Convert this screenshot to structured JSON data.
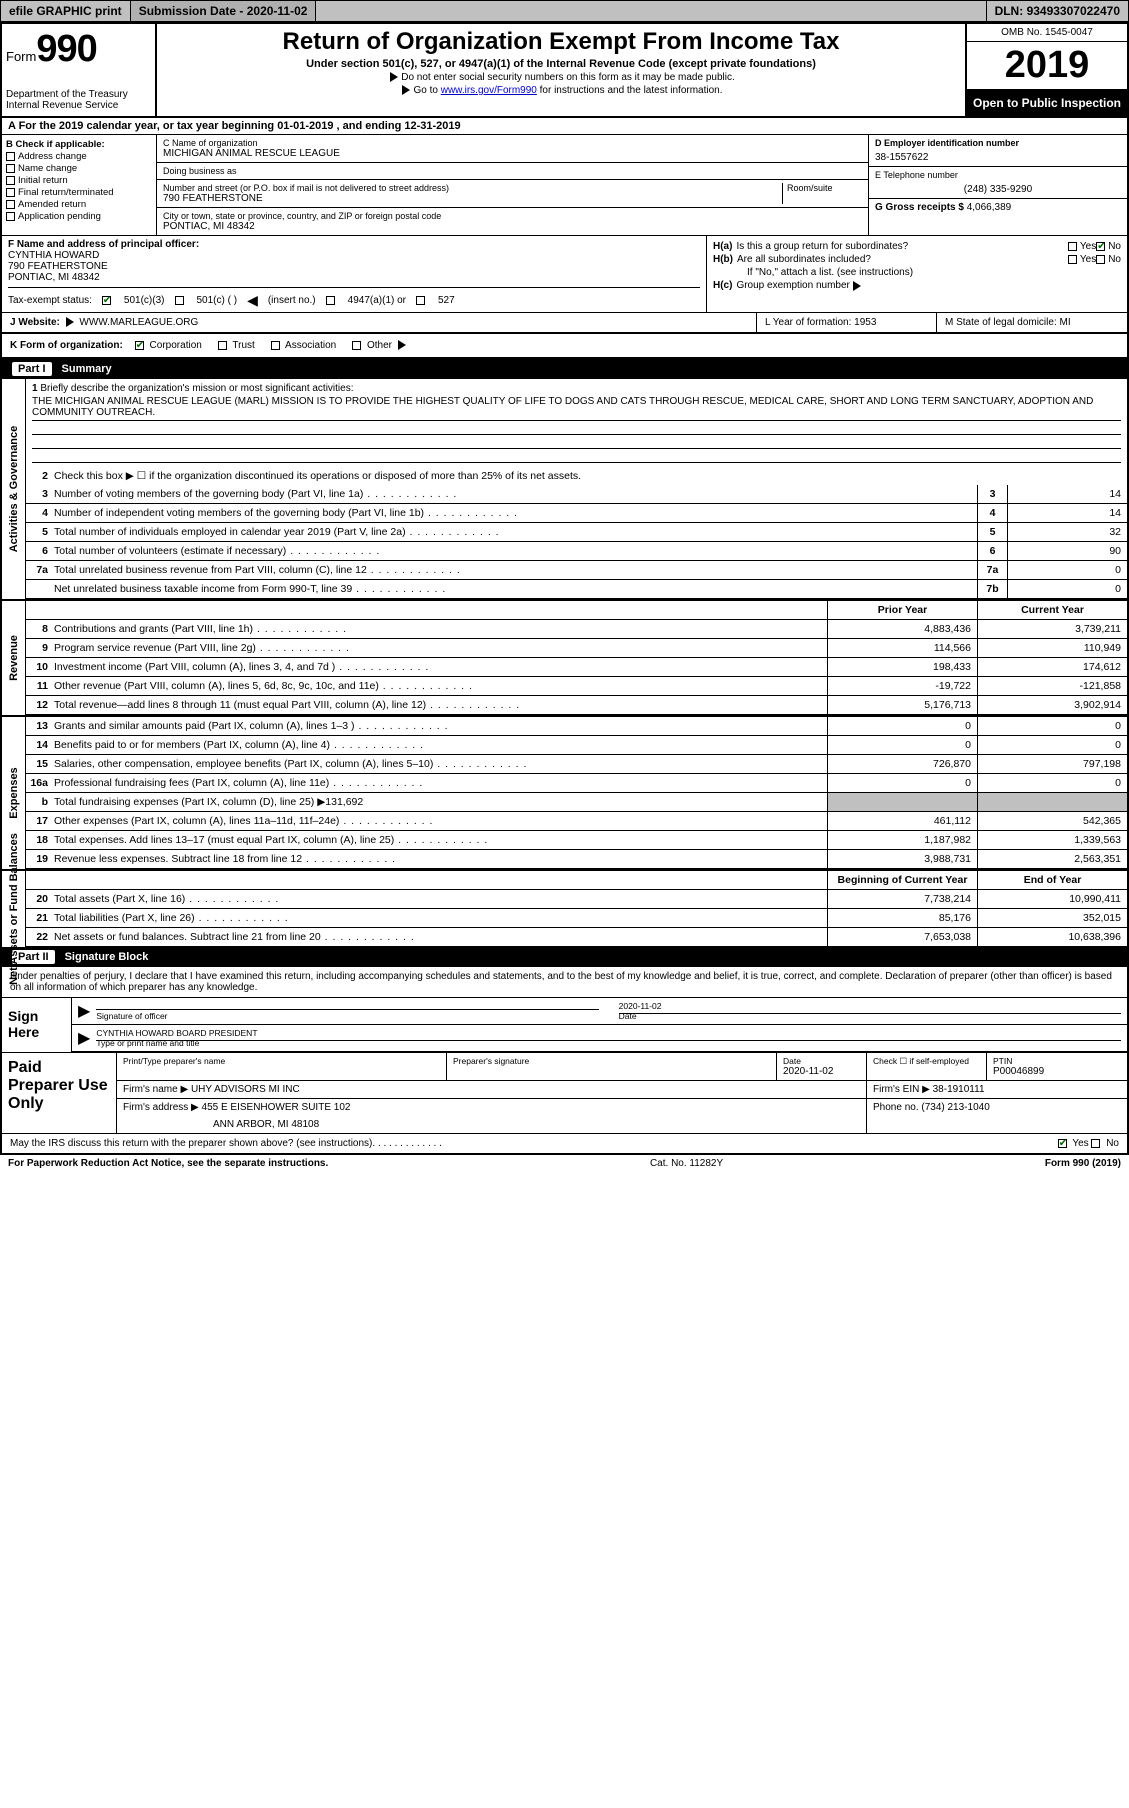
{
  "topbar": {
    "efile": "efile GRAPHIC print",
    "subdate_label": "Submission Date - ",
    "subdate": "2020-11-02",
    "dln_label": "DLN: ",
    "dln": "93493307022470"
  },
  "header": {
    "form_word": "Form",
    "form_num": "990",
    "dept1": "Department of the Treasury",
    "dept2": "Internal Revenue Service",
    "title": "Return of Organization Exempt From Income Tax",
    "sub": "Under section 501(c), 527, or 4947(a)(1) of the Internal Revenue Code (except private foundations)",
    "note1": "Do not enter social security numbers on this form as it may be made public.",
    "note2_a": "Go to ",
    "note2_link": "www.irs.gov/Form990",
    "note2_b": " for instructions and the latest information.",
    "omb": "OMB No. 1545-0047",
    "year": "2019",
    "open": "Open to Public Inspection"
  },
  "rowA": "A For the 2019 calendar year, or tax year beginning 01-01-2019   , and ending 12-31-2019",
  "colB": {
    "hdr": "B Check if applicable:",
    "items": [
      "Address change",
      "Name change",
      "Initial return",
      "Final return/terminated",
      "Amended return",
      "Application pending"
    ]
  },
  "colC": {
    "name_lbl": "C Name of organization",
    "name": "MICHIGAN ANIMAL RESCUE LEAGUE",
    "dba_lbl": "Doing business as",
    "dba": "",
    "addr_lbl": "Number and street (or P.O. box if mail is not delivered to street address)",
    "room_lbl": "Room/suite",
    "addr": "790 FEATHERSTONE",
    "city_lbl": "City or town, state or province, country, and ZIP or foreign postal code",
    "city": "PONTIAC, MI  48342"
  },
  "colD": {
    "lbl": "D Employer identification number",
    "val": "38-1557622"
  },
  "colE": {
    "lbl": "E Telephone number",
    "val": "(248) 335-9290"
  },
  "colG": {
    "lbl": "G Gross receipts $ ",
    "val": "4,066,389"
  },
  "colF": {
    "lbl": "F  Name and address of principal officer:",
    "name": "CYNTHIA HOWARD",
    "addr1": "790 FEATHERSTONE",
    "addr2": "PONTIAC, MI  48342"
  },
  "colH": {
    "a_lbl": "H(a)",
    "a_txt": "Is this a group return for subordinates?",
    "b_lbl": "H(b)",
    "b_txt": "Are all subordinates included?",
    "b_note": "If \"No,\" attach a list. (see instructions)",
    "c_lbl": "H(c)",
    "c_txt": "Group exemption number",
    "yes": "Yes",
    "no": "No"
  },
  "rowI": {
    "lbl": "Tax-exempt status:",
    "o1": "501(c)(3)",
    "o2": "501(c) (  )",
    "o2b": "(insert no.)",
    "o3": "4947(a)(1) or",
    "o4": "527"
  },
  "rowJ": {
    "lbl": "J   Website:",
    "val": "WWW.MARLEAGUE.ORG"
  },
  "rowL": {
    "lbl": "L Year of formation: ",
    "val": "1953"
  },
  "rowM": {
    "lbl": "M State of legal domicile: ",
    "val": "MI"
  },
  "rowK": {
    "lbl": "K Form of organization:",
    "opts": [
      "Corporation",
      "Trust",
      "Association",
      "Other"
    ]
  },
  "part1": {
    "num": "Part I",
    "title": "Summary",
    "side1": "Activities & Governance",
    "side2": "Revenue",
    "side3": "Expenses",
    "side4": "Net Assets or Fund Balances",
    "l1_lbl": "Briefly describe the organization's mission or most significant activities:",
    "l1_txt": "THE MICHIGAN ANIMAL RESCUE LEAGUE (MARL) MISSION IS TO PROVIDE THE HIGHEST QUALITY OF LIFE TO DOGS AND CATS THROUGH RESCUE, MEDICAL CARE, SHORT AND LONG TERM SANCTUARY, ADOPTION AND COMMUNITY OUTREACH.",
    "l2": "Check this box ▶ ☐  if the organization discontinued its operations or disposed of more than 25% of its net assets.",
    "lines_single": [
      {
        "n": "3",
        "d": "Number of voting members of the governing body (Part VI, line 1a)",
        "b": "3",
        "v": "14"
      },
      {
        "n": "4",
        "d": "Number of independent voting members of the governing body (Part VI, line 1b)",
        "b": "4",
        "v": "14"
      },
      {
        "n": "5",
        "d": "Total number of individuals employed in calendar year 2019 (Part V, line 2a)",
        "b": "5",
        "v": "32"
      },
      {
        "n": "6",
        "d": "Total number of volunteers (estimate if necessary)",
        "b": "6",
        "v": "90"
      },
      {
        "n": "7a",
        "d": "Total unrelated business revenue from Part VIII, column (C), line 12",
        "b": "7a",
        "v": "0"
      },
      {
        "n": "",
        "d": "Net unrelated business taxable income from Form 990-T, line 39",
        "b": "7b",
        "v": "0"
      }
    ],
    "col_hdr_prior": "Prior Year",
    "col_hdr_curr": "Current Year",
    "rev": [
      {
        "n": "8",
        "d": "Contributions and grants (Part VIII, line 1h)",
        "p": "4,883,436",
        "c": "3,739,211"
      },
      {
        "n": "9",
        "d": "Program service revenue (Part VIII, line 2g)",
        "p": "114,566",
        "c": "110,949"
      },
      {
        "n": "10",
        "d": "Investment income (Part VIII, column (A), lines 3, 4, and 7d )",
        "p": "198,433",
        "c": "174,612"
      },
      {
        "n": "11",
        "d": "Other revenue (Part VIII, column (A), lines 5, 6d, 8c, 9c, 10c, and 11e)",
        "p": "-19,722",
        "c": "-121,858"
      },
      {
        "n": "12",
        "d": "Total revenue—add lines 8 through 11 (must equal Part VIII, column (A), line 12)",
        "p": "5,176,713",
        "c": "3,902,914"
      }
    ],
    "exp": [
      {
        "n": "13",
        "d": "Grants and similar amounts paid (Part IX, column (A), lines 1–3 )",
        "p": "0",
        "c": "0"
      },
      {
        "n": "14",
        "d": "Benefits paid to or for members (Part IX, column (A), line 4)",
        "p": "0",
        "c": "0"
      },
      {
        "n": "15",
        "d": "Salaries, other compensation, employee benefits (Part IX, column (A), lines 5–10)",
        "p": "726,870",
        "c": "797,198"
      },
      {
        "n": "16a",
        "d": "Professional fundraising fees (Part IX, column (A), line 11e)",
        "p": "0",
        "c": "0"
      },
      {
        "n": "b",
        "d": "Total fundraising expenses (Part IX, column (D), line 25) ▶131,692",
        "p": "",
        "c": "",
        "shade": true
      },
      {
        "n": "17",
        "d": "Other expenses (Part IX, column (A), lines 11a–11d, 11f–24e)",
        "p": "461,112",
        "c": "542,365"
      },
      {
        "n": "18",
        "d": "Total expenses. Add lines 13–17 (must equal Part IX, column (A), line 25)",
        "p": "1,187,982",
        "c": "1,339,563"
      },
      {
        "n": "19",
        "d": "Revenue less expenses. Subtract line 18 from line 12",
        "p": "3,988,731",
        "c": "2,563,351"
      }
    ],
    "na_hdr_b": "Beginning of Current Year",
    "na_hdr_e": "End of Year",
    "na": [
      {
        "n": "20",
        "d": "Total assets (Part X, line 16)",
        "p": "7,738,214",
        "c": "10,990,411"
      },
      {
        "n": "21",
        "d": "Total liabilities (Part X, line 26)",
        "p": "85,176",
        "c": "352,015"
      },
      {
        "n": "22",
        "d": "Net assets or fund balances. Subtract line 21 from line 20",
        "p": "7,653,038",
        "c": "10,638,396"
      }
    ]
  },
  "part2": {
    "num": "Part II",
    "title": "Signature Block",
    "intro": "Under penalties of perjury, I declare that I have examined this return, including accompanying schedules and statements, and to the best of my knowledge and belief, it is true, correct, and complete. Declaration of preparer (other than officer) is based on all information of which preparer has any knowledge.",
    "sign_here": "Sign Here",
    "sig_officer_lbl": "Signature of officer",
    "date_lbl": "Date",
    "sig_date": "2020-11-02",
    "name_title": "CYNTHIA HOWARD  BOARD PRESIDENT",
    "name_title_lbl": "Type or print name and title",
    "paid": "Paid Preparer Use Only",
    "p_name_lbl": "Print/Type preparer's name",
    "p_sig_lbl": "Preparer's signature",
    "p_date_lbl": "Date",
    "p_date": "2020-11-02",
    "p_check_lbl": "Check ☐ if self-employed",
    "ptin_lbl": "PTIN",
    "ptin": "P00046899",
    "firm_name_lbl": "Firm's name   ▶",
    "firm_name": "UHY ADVISORS MI INC",
    "firm_ein_lbl": "Firm's EIN ▶",
    "firm_ein": "38-1910111",
    "firm_addr_lbl": "Firm's address ▶",
    "firm_addr1": "455 E EISENHOWER SUITE 102",
    "firm_addr2": "ANN ARBOR, MI  48108",
    "phone_lbl": "Phone no. ",
    "phone": "(734) 213-1040",
    "may_irs": "May the IRS discuss this return with the preparer shown above? (see instructions)",
    "yes": "Yes",
    "no": "No"
  },
  "footer": {
    "pra": "For Paperwork Reduction Act Notice, see the separate instructions.",
    "cat": "Cat. No. 11282Y",
    "form": "Form 990 (2019)"
  }
}
